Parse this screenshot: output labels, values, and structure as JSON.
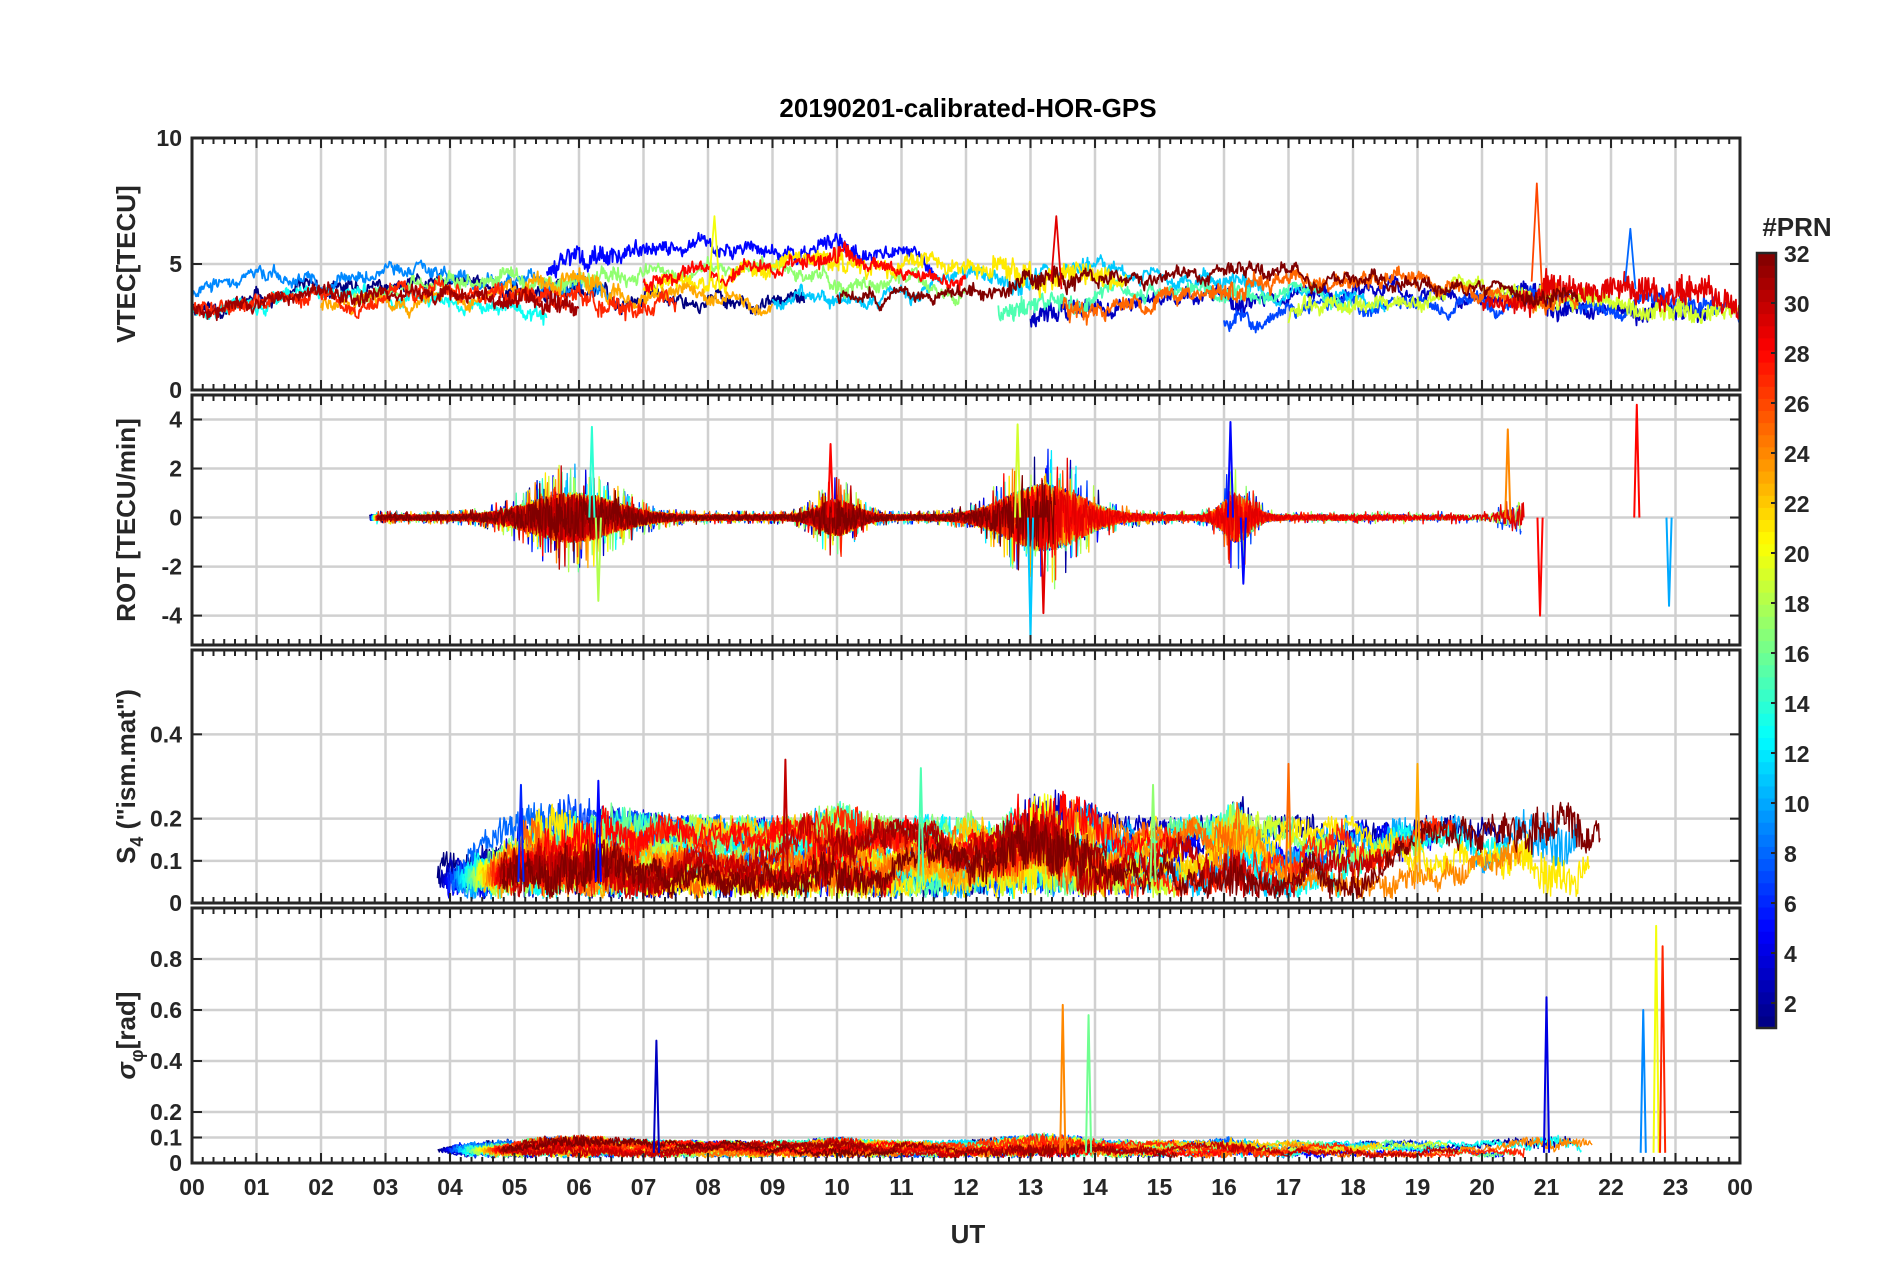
{
  "chart_data": {
    "type": "line",
    "title": "20190201-calibrated-HOR-GPS",
    "xlabel": "UT",
    "x_ticks": [
      "00",
      "01",
      "02",
      "03",
      "04",
      "05",
      "06",
      "07",
      "08",
      "09",
      "10",
      "11",
      "12",
      "13",
      "14",
      "15",
      "16",
      "17",
      "18",
      "19",
      "20",
      "21",
      "22",
      "23",
      "00"
    ],
    "xlim_hours": [
      0,
      24
    ],
    "grid": true,
    "colorbar": {
      "label": "#PRN",
      "range": [
        1,
        32
      ],
      "ticks": [
        2,
        4,
        6,
        8,
        10,
        12,
        14,
        16,
        18,
        20,
        22,
        24,
        26,
        28,
        30,
        32
      ],
      "colormap": "jet",
      "placement": "right"
    },
    "panels": [
      {
        "id": "vtec",
        "ylabel": "VTEC[TECU]",
        "ylim": [
          0,
          10
        ],
        "yticks": [
          0,
          5,
          10
        ],
        "yticklabels": [
          "0",
          "5",
          "10"
        ],
        "kind": "level",
        "series": [
          {
            "prn": 1,
            "start_h": 0.0,
            "end_h": 9.5,
            "base": 3.3,
            "amp": 0.9,
            "noise": 0.35,
            "seed": 11
          },
          {
            "prn": 3,
            "start_h": 13.0,
            "end_h": 23.5,
            "base": 3.0,
            "amp": 1.0,
            "noise": 0.4,
            "seed": 12
          },
          {
            "prn": 5,
            "start_h": 5.5,
            "end_h": 11.5,
            "base": 4.8,
            "amp": 1.0,
            "noise": 0.4,
            "seed": 13
          },
          {
            "prn": 7,
            "start_h": 16.0,
            "end_h": 24.0,
            "base": 2.8,
            "amp": 0.8,
            "noise": 0.35,
            "seed": 14
          },
          {
            "prn": 9,
            "start_h": 0.0,
            "end_h": 6.5,
            "base": 4.0,
            "amp": 0.8,
            "noise": 0.3,
            "seed": 15
          },
          {
            "prn": 11,
            "start_h": 9.0,
            "end_h": 18.5,
            "base": 3.6,
            "amp": 1.0,
            "noise": 0.3,
            "seed": 16
          },
          {
            "prn": 13,
            "start_h": 0.0,
            "end_h": 5.5,
            "base": 3.2,
            "amp": 0.6,
            "noise": 0.3,
            "seed": 17
          },
          {
            "prn": 15,
            "start_h": 12.5,
            "end_h": 18.0,
            "base": 3.2,
            "amp": 0.9,
            "noise": 0.35,
            "seed": 18
          },
          {
            "prn": 17,
            "start_h": 2.5,
            "end_h": 12.0,
            "base": 3.8,
            "amp": 1.0,
            "noise": 0.35,
            "seed": 19
          },
          {
            "prn": 19,
            "start_h": 17.0,
            "end_h": 24.0,
            "base": 2.9,
            "amp": 1.0,
            "noise": 0.45,
            "seed": 20
          },
          {
            "prn": 21,
            "start_h": 7.0,
            "end_h": 14.5,
            "base": 4.2,
            "amp": 1.1,
            "noise": 0.5,
            "seed": 21
          },
          {
            "prn": 23,
            "start_h": 2.0,
            "end_h": 9.0,
            "base": 3.4,
            "amp": 0.8,
            "noise": 0.35,
            "seed": 22
          },
          {
            "prn": 25,
            "start_h": 13.5,
            "end_h": 21.5,
            "base": 3.4,
            "amp": 1.0,
            "noise": 0.4,
            "seed": 23
          },
          {
            "prn": 27,
            "start_h": 0.0,
            "end_h": 7.5,
            "base": 3.3,
            "amp": 0.7,
            "noise": 0.4,
            "seed": 24
          },
          {
            "prn": 28,
            "start_h": 7.0,
            "end_h": 12.0,
            "base": 4.3,
            "amp": 1.0,
            "noise": 0.35,
            "seed": 25
          },
          {
            "prn": 29,
            "start_h": 20.0,
            "end_h": 24.0,
            "base": 3.4,
            "amp": 0.9,
            "noise": 0.6,
            "seed": 26
          },
          {
            "prn": 31,
            "start_h": 0.0,
            "end_h": 6.0,
            "base": 3.3,
            "amp": 0.7,
            "noise": 0.4,
            "seed": 27
          },
          {
            "prn": 32,
            "start_h": 10.0,
            "end_h": 21.5,
            "base": 3.6,
            "amp": 1.2,
            "noise": 0.3,
            "seed": 28
          }
        ]
      },
      {
        "id": "rot",
        "ylabel": "ROT [TECU/min]",
        "ylim": [
          -5.2,
          5.0
        ],
        "yticks": [
          -4,
          -2,
          0,
          2,
          4
        ],
        "yticklabels": [
          "-4",
          "-2",
          "0",
          "2",
          "4"
        ],
        "kind": "zero"
      },
      {
        "id": "s4",
        "ylabel_main": "S",
        "ylabel_sub": "4",
        "ylabel_rest": " (\"ism.mat\")",
        "ylim": [
          0,
          0.6
        ],
        "yticks": [
          0,
          0.1,
          0.2,
          0.4
        ],
        "yticklabels": [
          "0",
          "0.1",
          "0.2",
          "0.4"
        ],
        "kind": "positive"
      },
      {
        "id": "sigphi",
        "ylabel_main": "σ",
        "ylabel_sub": "φ",
        "ylabel_rest": "[rad]",
        "ylim": [
          0,
          1.0
        ],
        "yticks": [
          0,
          0.1,
          0.2,
          0.4,
          0.6,
          0.8
        ],
        "yticklabels": [
          "0",
          "0.1",
          "0.2",
          "0.4",
          "0.6",
          "0.8"
        ],
        "kind": "positive"
      }
    ],
    "activity_windows_h": [
      {
        "center": 5.9,
        "width": 0.9,
        "strength": 1.0
      },
      {
        "center": 10.0,
        "width": 0.4,
        "strength": 0.7
      },
      {
        "center": 13.2,
        "width": 0.8,
        "strength": 1.4
      },
      {
        "center": 16.2,
        "width": 0.3,
        "strength": 1.0
      },
      {
        "center": 21.0,
        "width": 0.5,
        "strength": 1.2
      },
      {
        "center": 22.9,
        "width": 0.8,
        "strength": 1.1
      }
    ],
    "peaks": {
      "rot": [
        {
          "h": 6.2,
          "v": 3.7,
          "prn": 14
        },
        {
          "h": 6.3,
          "v": -3.4,
          "prn": 18
        },
        {
          "h": 9.9,
          "v": 3.0,
          "prn": 28
        },
        {
          "h": 12.8,
          "v": 3.8,
          "prn": 19
        },
        {
          "h": 13.0,
          "v": -4.8,
          "prn": 11
        },
        {
          "h": 13.2,
          "v": -3.9,
          "prn": 29
        },
        {
          "h": 16.1,
          "v": 3.9,
          "prn": 5
        },
        {
          "h": 16.3,
          "v": -2.7,
          "prn": 5
        },
        {
          "h": 20.4,
          "v": 3.6,
          "prn": 24
        },
        {
          "h": 20.9,
          "v": -4.0,
          "prn": 28
        },
        {
          "h": 22.4,
          "v": 4.6,
          "prn": 28
        },
        {
          "h": 22.9,
          "v": -3.6,
          "prn": 10
        }
      ],
      "s4": [
        {
          "h": 5.1,
          "v": 0.28,
          "prn": 6
        },
        {
          "h": 6.3,
          "v": 0.29,
          "prn": 5
        },
        {
          "h": 9.2,
          "v": 0.34,
          "prn": 30
        },
        {
          "h": 11.3,
          "v": 0.32,
          "prn": 15
        },
        {
          "h": 14.9,
          "v": 0.28,
          "prn": 17
        },
        {
          "h": 17.0,
          "v": 0.33,
          "prn": 25
        },
        {
          "h": 19.0,
          "v": 0.33,
          "prn": 23
        }
      ],
      "sigphi": [
        {
          "h": 7.2,
          "v": 0.48,
          "prn": 3
        },
        {
          "h": 13.5,
          "v": 0.62,
          "prn": 24
        },
        {
          "h": 13.9,
          "v": 0.58,
          "prn": 16
        },
        {
          "h": 21.0,
          "v": 0.65,
          "prn": 4
        },
        {
          "h": 22.5,
          "v": 0.6,
          "prn": 9
        },
        {
          "h": 22.7,
          "v": 0.93,
          "prn": 20
        },
        {
          "h": 22.8,
          "v": 0.85,
          "prn": 27
        }
      ]
    }
  }
}
